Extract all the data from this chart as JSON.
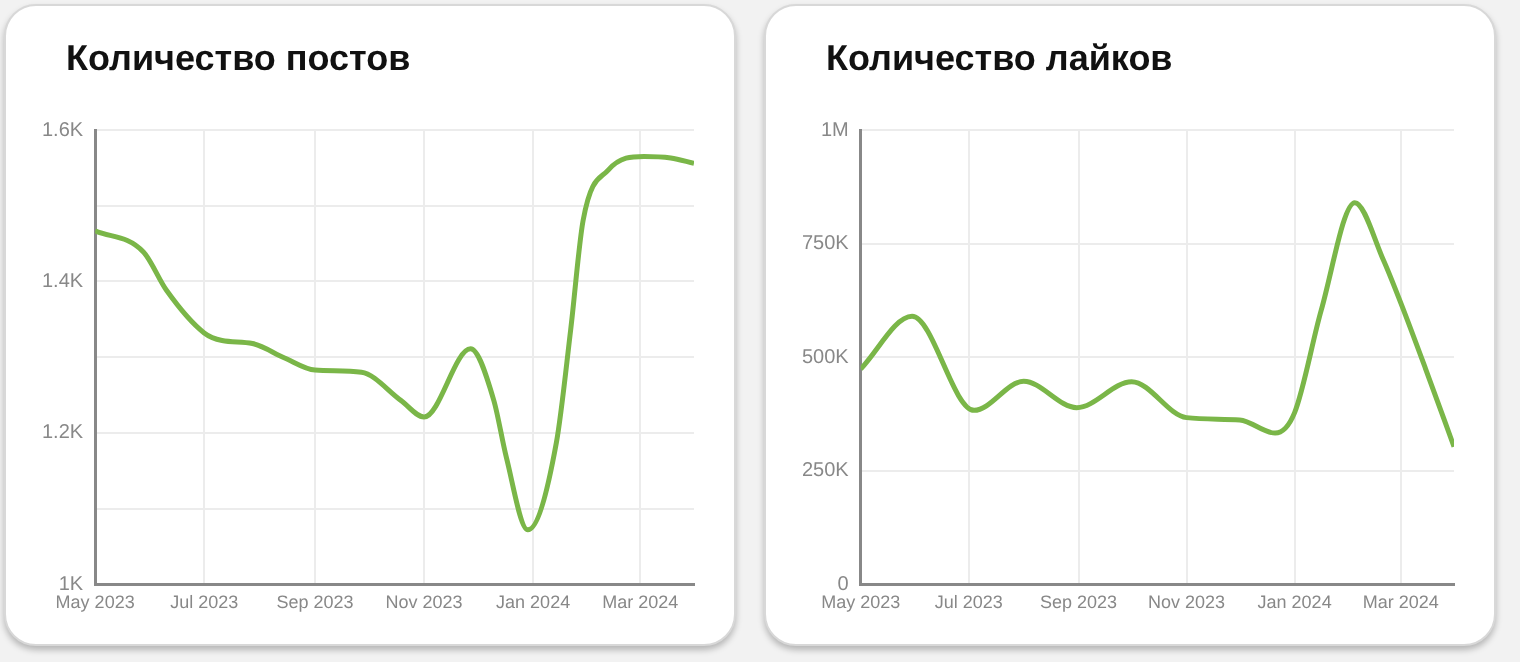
{
  "chart_data": [
    {
      "type": "line",
      "title": "Количество постов",
      "color": "#7ab648",
      "marker": "none",
      "grid": true,
      "x": [
        "2023-05-01",
        "2023-05-28",
        "2023-06-10",
        "2023-07-01",
        "2023-07-11",
        "2023-07-28",
        "2023-08-15",
        "2023-09-01",
        "2023-09-27",
        "2023-10-19",
        "2023-11-01",
        "2023-11-27",
        "2023-12-10",
        "2023-12-17",
        "2023-12-29",
        "2024-01-14",
        "2024-01-22",
        "2024-01-29",
        "2024-02-12",
        "2024-03-03",
        "2024-03-18",
        "2024-03-31"
      ],
      "values": [
        1467,
        1439,
        1388,
        1332,
        1322,
        1318,
        1299,
        1283,
        1280,
        1243,
        1221,
        1311,
        1243,
        1168,
        1072,
        1187,
        1336,
        1481,
        1547,
        1565,
        1563,
        1556
      ],
      "xlim": [
        "2023-05-01",
        "2024-03-31"
      ],
      "xticks": [
        {
          "value": "2023-05-01",
          "label": "May 2023"
        },
        {
          "value": "2023-07-01",
          "label": "Jul 2023"
        },
        {
          "value": "2023-09-01",
          "label": "Sep 2023"
        },
        {
          "value": "2023-11-01",
          "label": "Nov 2023"
        },
        {
          "value": "2024-01-01",
          "label": "Jan 2024"
        },
        {
          "value": "2024-03-01",
          "label": "Mar 2024"
        }
      ],
      "ylim": [
        1000,
        1600
      ],
      "yticks": [
        {
          "value": 1000,
          "label": "1K"
        },
        {
          "value": 1100,
          "label": null
        },
        {
          "value": 1200,
          "label": "1.2K"
        },
        {
          "value": 1300,
          "label": null
        },
        {
          "value": 1400,
          "label": "1.4K"
        },
        {
          "value": 1500,
          "label": null
        },
        {
          "value": 1600,
          "label": "1.6K"
        }
      ]
    },
    {
      "type": "line",
      "title": "Количество лайков",
      "color": "#7ab648",
      "marker": "none",
      "grid": true,
      "x": [
        "2023-05-01",
        "2023-05-30",
        "2023-07-04",
        "2023-08-01",
        "2023-08-31",
        "2023-10-01",
        "2023-11-01",
        "2023-12-01",
        "2023-12-21",
        "2024-01-01",
        "2024-01-16",
        "2024-02-04",
        "2024-02-20",
        "2024-03-01",
        "2024-03-15",
        "2024-03-31"
      ],
      "values": [
        474000,
        590000,
        383000,
        447000,
        389000,
        446000,
        367000,
        362000,
        333000,
        378000,
        603000,
        840000,
        715000,
        619000,
        474000,
        303000
      ],
      "xlim": [
        "2023-05-01",
        "2024-03-31"
      ],
      "xticks": [
        {
          "value": "2023-05-01",
          "label": "May 2023"
        },
        {
          "value": "2023-07-01",
          "label": "Jul 2023"
        },
        {
          "value": "2023-09-01",
          "label": "Sep 2023"
        },
        {
          "value": "2023-11-01",
          "label": "Nov 2023"
        },
        {
          "value": "2024-01-01",
          "label": "Jan 2024"
        },
        {
          "value": "2024-03-01",
          "label": "Mar 2024"
        }
      ],
      "ylim": [
        0,
        1000000
      ],
      "yticks": [
        0,
        {
          "value": 250000,
          "label": "250K"
        },
        {
          "value": 500000,
          "label": "500K"
        },
        {
          "value": 750000,
          "label": "750K"
        },
        {
          "value": 1000000,
          "label": "1M"
        }
      ]
    }
  ]
}
